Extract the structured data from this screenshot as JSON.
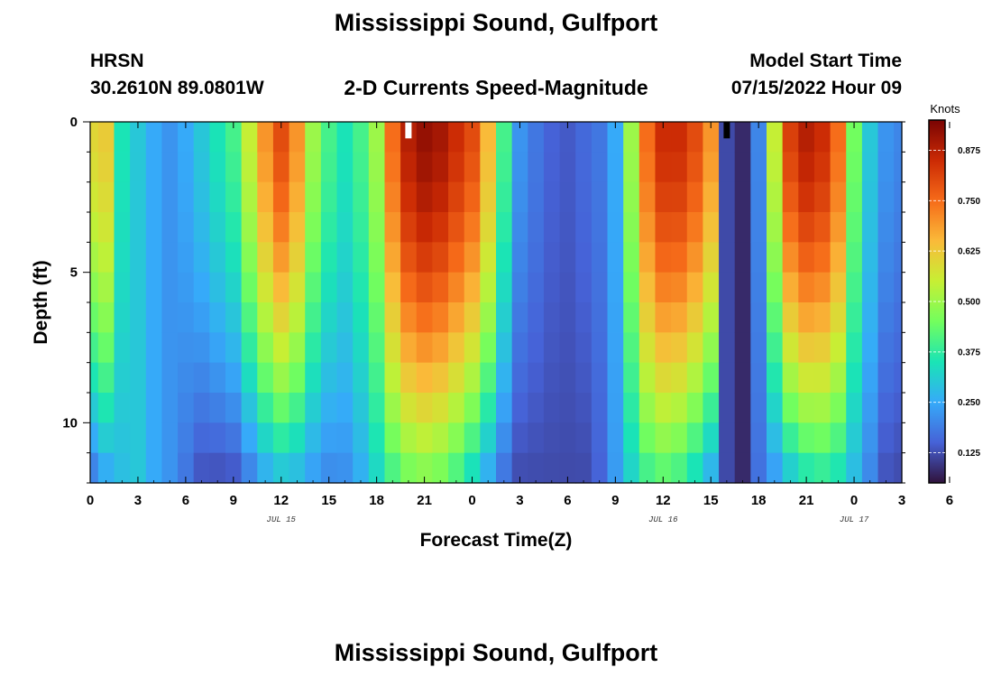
{
  "header": {
    "title": "Mississippi Sound, Gulfport",
    "station_id": "HRSN",
    "coordinates": "30.2610N  89.0801W",
    "plot_title": "2-D Currents Speed-Magnitude",
    "model_start_label": "Model Start Time",
    "model_start_value": "07/15/2022 Hour 09"
  },
  "footer": {
    "title_repeat": "Mississippi Sound, Gulfport"
  },
  "colors": {
    "colormap": [
      "#30123b",
      "#4662d7",
      "#36aaf9",
      "#1ae4b6",
      "#72fe5e",
      "#c7ef34",
      "#faba39",
      "#f66b19",
      "#cb2a04",
      "#7a0403"
    ],
    "missing_white": "#ffffff",
    "missing_black": "#000000"
  },
  "chart_data": {
    "type": "heatmap",
    "title": "2-D Currents Speed-Magnitude",
    "xlabel": "Forecast Time(Z)",
    "ylabel": "Depth (ft)",
    "colorbar_label": "Knots",
    "x_hours_from_start": [
      0,
      51
    ],
    "y_depth_ft_range": [
      0,
      12
    ],
    "x_ticks": [
      "0",
      "3",
      "6",
      "9",
      "12",
      "15",
      "18",
      "21",
      "0",
      "3",
      "6",
      "9",
      "12",
      "15",
      "18",
      "21",
      "0",
      "3",
      "6"
    ],
    "date_labels": [
      "JUL 15",
      "JUL 16",
      "JUL 17"
    ],
    "y_ticks": [
      0,
      5,
      10
    ],
    "colorbar_range": [
      0.05,
      0.95
    ],
    "colorbar_ticks": [
      "0.125",
      "0.250",
      "0.375",
      "0.500",
      "0.625",
      "0.750",
      "0.875"
    ],
    "surface_speed_knots_by_hour": [
      0.6,
      0.62,
      0.35,
      0.3,
      0.25,
      0.22,
      0.25,
      0.3,
      0.35,
      0.4,
      0.55,
      0.7,
      0.8,
      0.7,
      0.5,
      0.4,
      0.35,
      0.4,
      0.5,
      0.75,
      0.88,
      0.92,
      0.9,
      0.85,
      0.8,
      0.65,
      0.4,
      0.22,
      0.18,
      0.15,
      0.14,
      0.16,
      0.18,
      0.25,
      0.5,
      0.75,
      0.85,
      0.85,
      0.8,
      0.7,
      0.12,
      0.08,
      0.2,
      0.55,
      0.82,
      0.88,
      0.85,
      0.75,
      0.45,
      0.3,
      0.22,
      0.2
    ],
    "surface_missing": [
      {
        "hour": 20,
        "fill": "white"
      },
      {
        "hour": 40,
        "fill": "black"
      }
    ],
    "bottom_speed_knots": {
      "ebb_peak_hour21": 0.45,
      "flood_peak_hour36": 0.4,
      "ebb_peak_hour46": 0.35,
      "slack": 0.12
    }
  }
}
